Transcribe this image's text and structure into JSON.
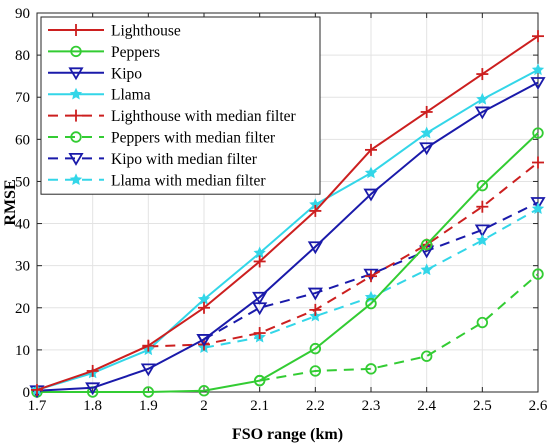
{
  "chart_data": {
    "type": "line",
    "xlabel": "FSO range (km)",
    "ylabel": "RMSE",
    "xlim": [
      1.7,
      2.6
    ],
    "ylim": [
      0,
      90
    ],
    "xticks": [
      "1.7",
      "1.8",
      "1.9",
      "2",
      "2.1",
      "2.2",
      "2.3",
      "2.4",
      "2.5",
      "2.6"
    ],
    "yticks": [
      "0",
      "10",
      "20",
      "30",
      "40",
      "50",
      "60",
      "70",
      "80",
      "90"
    ],
    "grid": true,
    "legend_position": "top-left",
    "x": [
      1.7,
      1.8,
      1.9,
      2.0,
      2.1,
      2.2,
      2.3,
      2.4,
      2.5,
      2.6
    ],
    "series": [
      {
        "name": "Lighthouse",
        "color": "#cc1f1f",
        "dash": "solid",
        "marker": "plus",
        "values": [
          0.5,
          5,
          11,
          20,
          31,
          43,
          57.5,
          66.5,
          75.5,
          84.5
        ]
      },
      {
        "name": "Peppers",
        "color": "#33cc33",
        "dash": "solid",
        "marker": "circle",
        "values": [
          0,
          0,
          0,
          0.3,
          2.7,
          10.3,
          21,
          35,
          49,
          61.5
        ]
      },
      {
        "name": "Kipo",
        "color": "#1a1aaa",
        "dash": "solid",
        "marker": "triangle-down",
        "values": [
          0.3,
          1,
          5.5,
          12.5,
          22.5,
          34.5,
          47,
          58,
          66.5,
          73.5
        ]
      },
      {
        "name": "Llama",
        "color": "#33d6e8",
        "dash": "solid",
        "marker": "star",
        "values": [
          0.5,
          4.5,
          10,
          22,
          33,
          44.5,
          52,
          61.5,
          69.5,
          76.5
        ]
      },
      {
        "name": "Lighthouse with median filter",
        "color": "#cc1f1f",
        "dash": "dashed",
        "marker": "plus",
        "values": [
          null,
          null,
          10.8,
          11.3,
          14,
          19.5,
          27.5,
          35,
          44,
          54.5
        ]
      },
      {
        "name": "Peppers with median filter",
        "color": "#33cc33",
        "dash": "dashed",
        "marker": "circle",
        "values": [
          null,
          null,
          null,
          null,
          2.7,
          5,
          5.5,
          8.5,
          16.5,
          28
        ]
      },
      {
        "name": "Kipo with median filter",
        "color": "#1a1aaa",
        "dash": "dashed",
        "marker": "triangle-down",
        "values": [
          null,
          null,
          null,
          12.5,
          20,
          23.5,
          28,
          33.5,
          38.5,
          45
        ]
      },
      {
        "name": "Llama with median filter",
        "color": "#33d6e8",
        "dash": "dashed",
        "marker": "star",
        "values": [
          null,
          null,
          null,
          10.5,
          13,
          18,
          22.5,
          29,
          36,
          43.5
        ]
      }
    ]
  }
}
